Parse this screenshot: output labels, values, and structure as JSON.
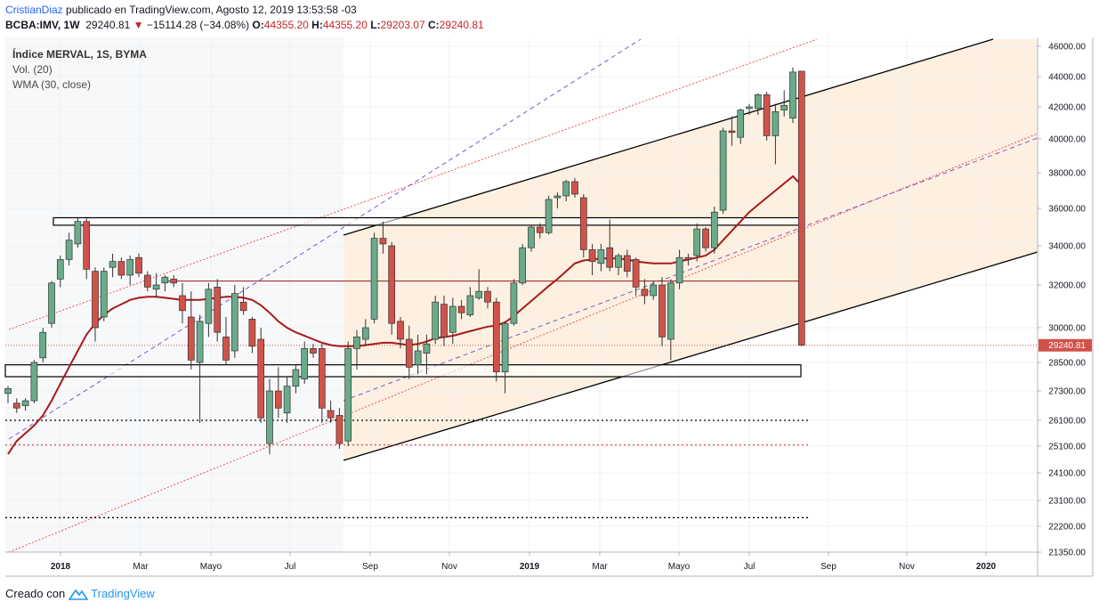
{
  "header": {
    "author": "CristianDiaz",
    "published_text": "publicado en TradingView.com, Agosto 12, 2019 13:53:58 -03",
    "symbol": "BCBA:IMV, 1W",
    "last": "29240.81",
    "change": "−15114.28 (−34.08%)",
    "o_label": "O:",
    "o": "44355.20",
    "h_label": "H:",
    "h": "44355.20",
    "l_label": "L:",
    "l": "29203.07",
    "c_label": "C:",
    "c": "29240.81"
  },
  "legend": {
    "title": "Índice MERVAL, 1S, BYMA",
    "vol": "Vol. (20)",
    "wma": "WMA (30, close)"
  },
  "footer": {
    "created_with": "Creado con",
    "brand": "TradingView"
  },
  "colors": {
    "up": "#6aab8a",
    "down": "#d1524a",
    "wma": "#a61b1b",
    "channel_fill": "#fdf0e0",
    "channel_line": "#000000",
    "pitchfork_mid": "#7e57c2",
    "fib_line": "#ef5350",
    "price_tag": "#d1524a"
  },
  "chart_data": {
    "type": "candlestick",
    "interval": "1W",
    "ylim": [
      21350,
      46500
    ],
    "y_ticks": [
      "46000.00",
      "44000.00",
      "42000.00",
      "40000.00",
      "38000.00",
      "36000.00",
      "34000.00",
      "32000.00",
      "30000.00",
      "28500.00",
      "27300.00",
      "26100.00",
      "25100.00",
      "24100.00",
      "23100.00",
      "22200.00",
      "21350.00"
    ],
    "x_ticks": [
      {
        "label": "2018",
        "bold": true,
        "date": "2018-01-01"
      },
      {
        "label": "Mar",
        "bold": false,
        "date": "2018-03-01"
      },
      {
        "label": "Mayo",
        "bold": false,
        "date": "2018-05-01"
      },
      {
        "label": "Jul",
        "bold": false,
        "date": "2018-07-01"
      },
      {
        "label": "Sep",
        "bold": false,
        "date": "2018-09-01"
      },
      {
        "label": "Nov",
        "bold": false,
        "date": "2018-11-01"
      },
      {
        "label": "2019",
        "bold": true,
        "date": "2019-01-01"
      },
      {
        "label": "Mar",
        "bold": false,
        "date": "2019-03-01"
      },
      {
        "label": "Mayo",
        "bold": false,
        "date": "2019-05-01"
      },
      {
        "label": "Jul",
        "bold": false,
        "date": "2019-07-01"
      },
      {
        "label": "Sep",
        "bold": false,
        "date": "2019-09-01"
      },
      {
        "label": "Nov",
        "bold": false,
        "date": "2019-11-01"
      },
      {
        "label": "2020",
        "bold": true,
        "date": "2020-01-01"
      }
    ],
    "last_price_label": "29240.81",
    "candles": [
      {
        "o": 27200,
        "h": 27500,
        "l": 26800,
        "c": 27400
      },
      {
        "o": 26800,
        "h": 27000,
        "l": 26400,
        "c": 26600
      },
      {
        "o": 26700,
        "h": 27000,
        "l": 26500,
        "c": 26900
      },
      {
        "o": 26900,
        "h": 28600,
        "l": 26800,
        "c": 28500
      },
      {
        "o": 28700,
        "h": 30000,
        "l": 28500,
        "c": 29800
      },
      {
        "o": 30200,
        "h": 32200,
        "l": 30000,
        "c": 32100
      },
      {
        "o": 32300,
        "h": 33500,
        "l": 31900,
        "c": 33300
      },
      {
        "o": 33300,
        "h": 34700,
        "l": 33000,
        "c": 34300
      },
      {
        "o": 34100,
        "h": 35500,
        "l": 33900,
        "c": 35300
      },
      {
        "o": 35300,
        "h": 35500,
        "l": 32300,
        "c": 32800
      },
      {
        "o": 32700,
        "h": 32900,
        "l": 29400,
        "c": 30000
      },
      {
        "o": 30500,
        "h": 32900,
        "l": 30300,
        "c": 32700
      },
      {
        "o": 32900,
        "h": 33600,
        "l": 32400,
        "c": 33200
      },
      {
        "o": 33200,
        "h": 33400,
        "l": 32300,
        "c": 32500
      },
      {
        "o": 32500,
        "h": 33500,
        "l": 32000,
        "c": 33300
      },
      {
        "o": 33400,
        "h": 33600,
        "l": 32400,
        "c": 32600
      },
      {
        "o": 32500,
        "h": 32700,
        "l": 31700,
        "c": 31900
      },
      {
        "o": 31800,
        "h": 32600,
        "l": 31400,
        "c": 32000
      },
      {
        "o": 32100,
        "h": 32500,
        "l": 31700,
        "c": 32400
      },
      {
        "o": 32300,
        "h": 32500,
        "l": 31900,
        "c": 32100
      },
      {
        "o": 31500,
        "h": 32100,
        "l": 30200,
        "c": 30800
      },
      {
        "o": 30500,
        "h": 31700,
        "l": 28200,
        "c": 28600
      },
      {
        "o": 28500,
        "h": 30600,
        "l": 26000,
        "c": 30300
      },
      {
        "o": 30200,
        "h": 32100,
        "l": 29600,
        "c": 31800
      },
      {
        "o": 31900,
        "h": 32300,
        "l": 29400,
        "c": 29800
      },
      {
        "o": 29600,
        "h": 30500,
        "l": 28400,
        "c": 28600
      },
      {
        "o": 29000,
        "h": 32000,
        "l": 28700,
        "c": 31600
      },
      {
        "o": 31200,
        "h": 31900,
        "l": 30600,
        "c": 30800
      },
      {
        "o": 30400,
        "h": 30500,
        "l": 28900,
        "c": 29200
      },
      {
        "o": 29500,
        "h": 30000,
        "l": 26000,
        "c": 26200
      },
      {
        "o": 25200,
        "h": 27800,
        "l": 24800,
        "c": 27300
      },
      {
        "o": 27300,
        "h": 28300,
        "l": 26200,
        "c": 26600
      },
      {
        "o": 26400,
        "h": 27900,
        "l": 26000,
        "c": 27500
      },
      {
        "o": 27500,
        "h": 28400,
        "l": 27200,
        "c": 28200
      },
      {
        "o": 27800,
        "h": 29400,
        "l": 27600,
        "c": 29100
      },
      {
        "o": 29100,
        "h": 29300,
        "l": 28700,
        "c": 28900
      },
      {
        "o": 29100,
        "h": 29300,
        "l": 26000,
        "c": 26600
      },
      {
        "o": 26500,
        "h": 26900,
        "l": 26000,
        "c": 26200
      },
      {
        "o": 26300,
        "h": 26600,
        "l": 25000,
        "c": 25200
      },
      {
        "o": 25300,
        "h": 29400,
        "l": 25100,
        "c": 29100
      },
      {
        "o": 29100,
        "h": 29900,
        "l": 28200,
        "c": 29600
      },
      {
        "o": 29500,
        "h": 30400,
        "l": 29200,
        "c": 30000
      },
      {
        "o": 30400,
        "h": 34700,
        "l": 30200,
        "c": 34400
      },
      {
        "o": 34400,
        "h": 35300,
        "l": 33600,
        "c": 34100
      },
      {
        "o": 34000,
        "h": 34200,
        "l": 29700,
        "c": 30200
      },
      {
        "o": 30300,
        "h": 30500,
        "l": 29100,
        "c": 29500
      },
      {
        "o": 29500,
        "h": 30100,
        "l": 27800,
        "c": 28300
      },
      {
        "o": 28400,
        "h": 29700,
        "l": 28000,
        "c": 29000
      },
      {
        "o": 28900,
        "h": 29700,
        "l": 28000,
        "c": 29300
      },
      {
        "o": 29500,
        "h": 31500,
        "l": 29300,
        "c": 31200
      },
      {
        "o": 31100,
        "h": 31500,
        "l": 29200,
        "c": 29600
      },
      {
        "o": 29800,
        "h": 31400,
        "l": 29300,
        "c": 31000
      },
      {
        "o": 31000,
        "h": 31300,
        "l": 30400,
        "c": 30700
      },
      {
        "o": 30600,
        "h": 31900,
        "l": 30500,
        "c": 31500
      },
      {
        "o": 31400,
        "h": 32800,
        "l": 31300,
        "c": 31700
      },
      {
        "o": 31700,
        "h": 31900,
        "l": 30900,
        "c": 31200
      },
      {
        "o": 31200,
        "h": 31400,
        "l": 27700,
        "c": 28100
      },
      {
        "o": 28100,
        "h": 30300,
        "l": 27200,
        "c": 30200
      },
      {
        "o": 30200,
        "h": 32300,
        "l": 30100,
        "c": 32100
      },
      {
        "o": 32100,
        "h": 34100,
        "l": 32000,
        "c": 33900
      },
      {
        "o": 33900,
        "h": 35100,
        "l": 33700,
        "c": 35000
      },
      {
        "o": 35000,
        "h": 35200,
        "l": 34400,
        "c": 34700
      },
      {
        "o": 34700,
        "h": 36700,
        "l": 34600,
        "c": 36500
      },
      {
        "o": 36600,
        "h": 36900,
        "l": 36000,
        "c": 36700
      },
      {
        "o": 36700,
        "h": 37600,
        "l": 36400,
        "c": 37500
      },
      {
        "o": 37500,
        "h": 37700,
        "l": 36600,
        "c": 36800
      },
      {
        "o": 36600,
        "h": 36800,
        "l": 33400,
        "c": 33800
      },
      {
        "o": 33800,
        "h": 34100,
        "l": 32500,
        "c": 33200
      },
      {
        "o": 33100,
        "h": 34100,
        "l": 32700,
        "c": 33800
      },
      {
        "o": 33900,
        "h": 35400,
        "l": 32700,
        "c": 32900
      },
      {
        "o": 32900,
        "h": 33600,
        "l": 32500,
        "c": 33500
      },
      {
        "o": 33500,
        "h": 33800,
        "l": 32400,
        "c": 32700
      },
      {
        "o": 33300,
        "h": 33400,
        "l": 31500,
        "c": 31900
      },
      {
        "o": 31800,
        "h": 32300,
        "l": 31100,
        "c": 31500
      },
      {
        "o": 31500,
        "h": 32200,
        "l": 31300,
        "c": 32000
      },
      {
        "o": 32000,
        "h": 32400,
        "l": 29200,
        "c": 29600
      },
      {
        "o": 29500,
        "h": 32300,
        "l": 28600,
        "c": 32100
      },
      {
        "o": 32100,
        "h": 33800,
        "l": 31800,
        "c": 33400
      },
      {
        "o": 33400,
        "h": 33600,
        "l": 33000,
        "c": 33300
      },
      {
        "o": 33500,
        "h": 35200,
        "l": 33200,
        "c": 34900
      },
      {
        "o": 34900,
        "h": 35000,
        "l": 33700,
        "c": 33900
      },
      {
        "o": 33900,
        "h": 36100,
        "l": 33600,
        "c": 35800
      },
      {
        "o": 35900,
        "h": 40700,
        "l": 35700,
        "c": 40500
      },
      {
        "o": 40500,
        "h": 41400,
        "l": 39600,
        "c": 40400
      },
      {
        "o": 40100,
        "h": 41900,
        "l": 39700,
        "c": 41800
      },
      {
        "o": 41900,
        "h": 42200,
        "l": 41500,
        "c": 42000
      },
      {
        "o": 41900,
        "h": 42900,
        "l": 41500,
        "c": 42800
      },
      {
        "o": 42800,
        "h": 43000,
        "l": 39900,
        "c": 40200
      },
      {
        "o": 40200,
        "h": 42200,
        "l": 38500,
        "c": 41700
      },
      {
        "o": 41800,
        "h": 43100,
        "l": 41400,
        "c": 42100
      },
      {
        "o": 41300,
        "h": 44600,
        "l": 41000,
        "c": 44300
      },
      {
        "o": 44355.2,
        "h": 44355.2,
        "l": 29203.07,
        "c": 29240.81
      }
    ],
    "wma": [
      24800,
      25300,
      25600,
      25900,
      26300,
      26900,
      27600,
      28300,
      29000,
      29700,
      30200,
      30600,
      30900,
      31100,
      31300,
      31400,
      31450,
      31450,
      31400,
      31350,
      31300,
      31300,
      31300,
      31350,
      31400,
      31450,
      31450,
      31400,
      31300,
      31050,
      30700,
      30300,
      30000,
      29800,
      29650,
      29500,
      29350,
      29250,
      29200,
      29200,
      29200,
      29250,
      29300,
      29350,
      29350,
      29300,
      29250,
      29300,
      29400,
      29550,
      29600,
      29650,
      29750,
      29850,
      29950,
      30050,
      30100,
      30250,
      30550,
      30900,
      31250,
      31600,
      31950,
      32300,
      32700,
      33100,
      33250,
      33300,
      33350,
      33350,
      33350,
      33300,
      33200,
      33150,
      33100,
      33100,
      33100,
      33200,
      33300,
      33400,
      33500,
      33800,
      34300,
      34800,
      35300,
      35800,
      36200,
      36600,
      37000,
      37400,
      37800,
      37300
    ]
  }
}
